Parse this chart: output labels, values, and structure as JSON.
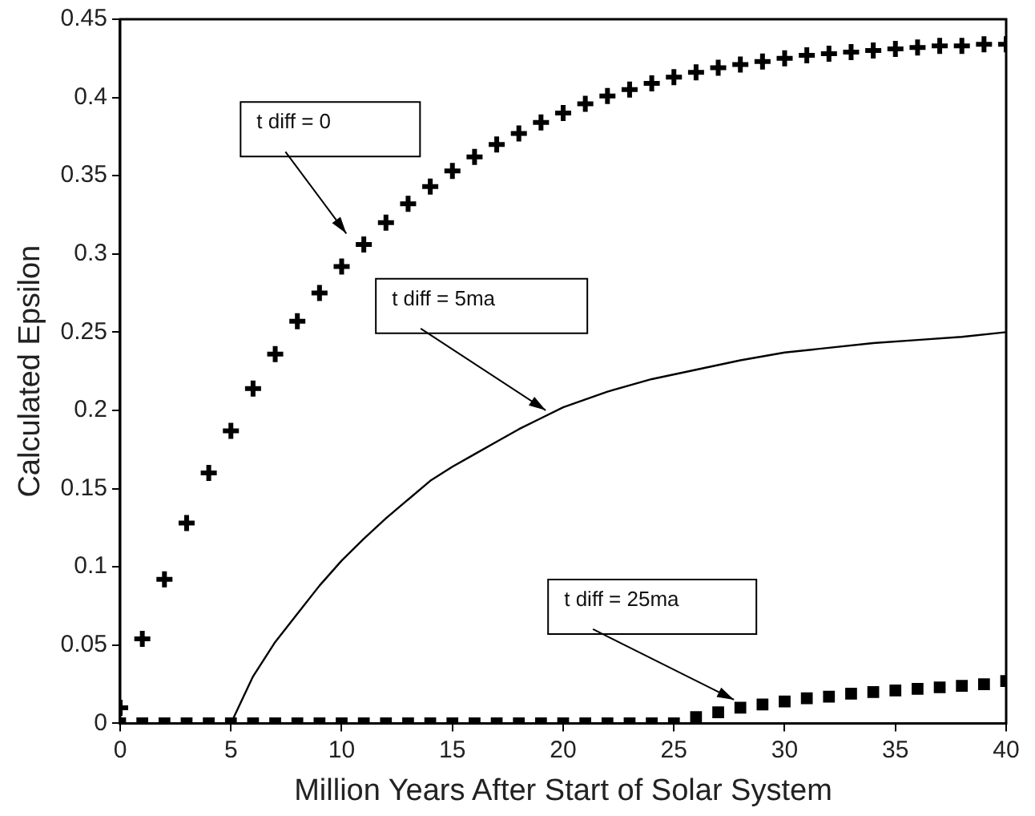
{
  "chart_data": {
    "type": "line",
    "xlabel": "Million Years After Start of Solar System",
    "ylabel": "Calculated Epsilon",
    "xlim": [
      0,
      40
    ],
    "ylim": [
      0,
      0.45
    ],
    "xticks": [
      0,
      5,
      10,
      15,
      20,
      25,
      30,
      35,
      40
    ],
    "yticks": [
      0,
      0.05,
      0.1,
      0.15,
      0.2,
      0.25,
      0.3,
      0.35,
      0.4,
      0.45
    ],
    "grid": false,
    "legend": false,
    "series": [
      {
        "type": "scatter",
        "marker": "cross",
        "color": "#000000",
        "x": [
          0,
          1,
          2,
          3,
          4,
          5,
          6,
          7,
          8,
          9,
          10,
          11,
          12,
          13,
          14,
          15,
          16,
          17,
          18,
          19,
          20,
          21,
          22,
          23,
          24,
          25,
          26,
          27,
          28,
          29,
          30,
          31,
          32,
          33,
          34,
          35,
          36,
          37,
          38,
          39,
          40
        ],
        "values": [
          0.01,
          0.054,
          0.092,
          0.128,
          0.16,
          0.187,
          0.214,
          0.236,
          0.257,
          0.275,
          0.292,
          0.306,
          0.32,
          0.332,
          0.343,
          0.353,
          0.362,
          0.37,
          0.377,
          0.384,
          0.39,
          0.396,
          0.401,
          0.405,
          0.409,
          0.413,
          0.416,
          0.419,
          0.421,
          0.423,
          0.425,
          0.427,
          0.428,
          0.429,
          0.43,
          0.431,
          0.432,
          0.433,
          0.433,
          0.434,
          0.434
        ]
      },
      {
        "marker": "none",
        "line_style": "solid",
        "color": "#000000",
        "x": [
          0,
          5,
          6,
          7,
          8,
          9,
          10,
          11,
          12,
          13,
          14,
          15,
          16,
          17,
          18,
          19,
          20,
          22,
          24,
          26,
          28,
          30,
          32,
          34,
          36,
          38,
          40
        ],
        "values": [
          0,
          0,
          0.03,
          0.052,
          0.07,
          0.088,
          0.104,
          0.118,
          0.131,
          0.143,
          0.155,
          0.164,
          0.172,
          0.18,
          0.188,
          0.195,
          0.202,
          0.212,
          0.22,
          0.226,
          0.232,
          0.237,
          0.24,
          0.243,
          0.245,
          0.247,
          0.25
        ]
      },
      {
        "type": "scatter",
        "marker": "square",
        "color": "#000000",
        "x": [
          0,
          1,
          2,
          3,
          4,
          5,
          6,
          7,
          8,
          9,
          10,
          11,
          12,
          13,
          14,
          15,
          16,
          17,
          18,
          19,
          20,
          21,
          22,
          23,
          24,
          25,
          26,
          27,
          28,
          29,
          30,
          31,
          32,
          33,
          34,
          35,
          36,
          37,
          38,
          39,
          40
        ],
        "values": [
          0,
          0,
          0,
          0,
          0,
          0,
          0,
          0,
          0,
          0,
          0,
          0,
          0,
          0,
          0,
          0,
          0,
          0,
          0,
          0,
          0,
          0,
          0,
          0,
          0,
          0,
          0.004,
          0.007,
          0.01,
          0.012,
          0.014,
          0.016,
          0.017,
          0.019,
          0.02,
          0.021,
          0.022,
          0.023,
          0.024,
          0.025,
          0.027
        ]
      }
    ],
    "annotations": [
      {
        "text": "t diff = 0",
        "x": 10.5,
        "y": 0.31
      },
      {
        "text": "t diff = 5ma",
        "x": 19.5,
        "y": 0.197
      },
      {
        "text": "t diff = 25ma",
        "x": 28,
        "y": 0.012
      }
    ]
  }
}
